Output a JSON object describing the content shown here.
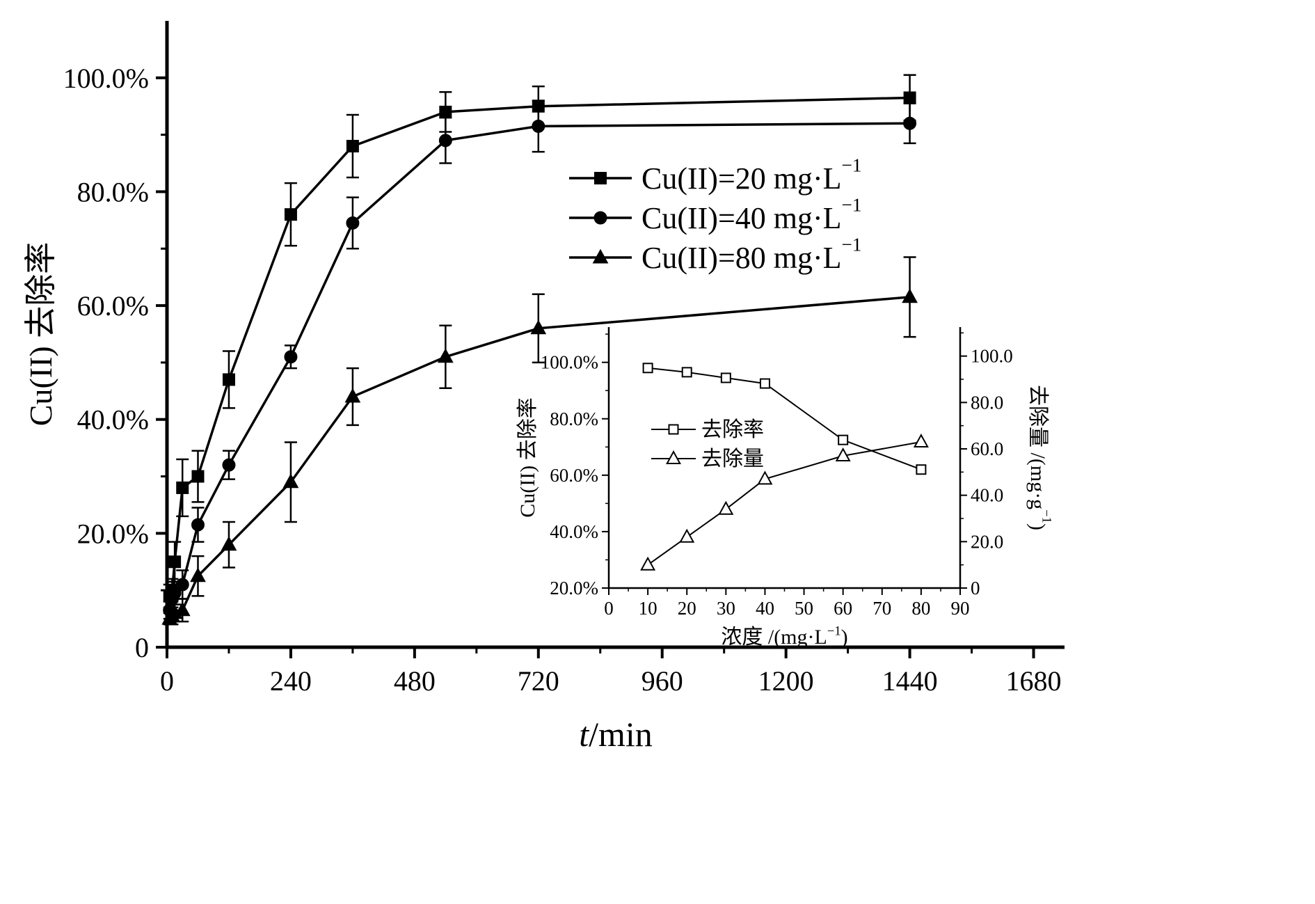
{
  "colors": {
    "ink": "#000000",
    "background": "#ffffff"
  },
  "chart_data": [
    {
      "id": "main",
      "type": "line",
      "title": "",
      "xlabel": "t/min",
      "xlabel_segments": [
        {
          "text": "t",
          "italic": true
        },
        {
          "text": "/min"
        }
      ],
      "ylabel": "Cu(II) 去除率",
      "ylabel_segments": [
        {
          "text": "Cu(II) 去除率"
        }
      ],
      "xlim": [
        0,
        1740
      ],
      "ylim": [
        0,
        110
      ],
      "y_unit": "percent",
      "grid": false,
      "legend_position": "upper-center-right",
      "x_ticks": {
        "values": [
          0,
          240,
          480,
          720,
          960,
          1200,
          1440,
          1680
        ],
        "labels": [
          "0",
          "240",
          "480",
          "720",
          "960",
          "1200",
          "1440",
          "1680"
        ],
        "minor_step": 120
      },
      "y_ticks": {
        "values": [
          0,
          20,
          40,
          60,
          80,
          100
        ],
        "labels": [
          "0",
          "20.0%",
          "40.0%",
          "60.0%",
          "80.0%",
          "100.0%"
        ],
        "minor_step": 10
      },
      "x": [
        5,
        10,
        15,
        30,
        60,
        120,
        240,
        360,
        540,
        720,
        1440
      ],
      "series": [
        {
          "name": "Cu(II)=20 mg·L⁻¹",
          "label_segments": [
            {
              "text": "Cu(II)=20 mg·L"
            },
            {
              "text": "−1",
              "sup": true
            }
          ],
          "marker": "square",
          "filled": true,
          "y": [
            9,
            10,
            15,
            28,
            30,
            47,
            76,
            88,
            94,
            95,
            96.5
          ],
          "err": [
            2,
            2,
            3.5,
            5,
            4.5,
            5,
            5.5,
            5.5,
            3.5,
            3.5,
            4
          ]
        },
        {
          "name": "Cu(II)=40 mg·L⁻¹",
          "label_segments": [
            {
              "text": "Cu(II)=40 mg·L"
            },
            {
              "text": "−1",
              "sup": true
            }
          ],
          "marker": "circle",
          "filled": true,
          "y": [
            6.5,
            8.5,
            9.5,
            11,
            21.5,
            32,
            51,
            74.5,
            89,
            91.5,
            92
          ],
          "err": [
            1.5,
            2,
            2,
            2.5,
            3,
            2.5,
            2,
            4.5,
            4,
            4.5,
            3.5
          ]
        },
        {
          "name": "Cu(II)=80 mg·L⁻¹",
          "label_segments": [
            {
              "text": "Cu(II)=80 mg·L"
            },
            {
              "text": "−1",
              "sup": true
            }
          ],
          "marker": "triangle",
          "filled": true,
          "y": [
            5,
            5.5,
            6,
            6.5,
            12.5,
            18,
            29,
            44,
            51,
            56,
            61.5
          ],
          "err": [
            1,
            1.5,
            1.5,
            2,
            3.5,
            4,
            7,
            5,
            5.5,
            6,
            7
          ]
        }
      ]
    },
    {
      "id": "inset",
      "type": "line",
      "xlabel": "浓度 /(mg·L⁻¹)",
      "xlabel_segments": [
        {
          "text": "浓度 /(mg·L"
        },
        {
          "text": "−1",
          "sup": true
        },
        {
          "text": ")"
        }
      ],
      "ylabel_left": "Cu(II) 去除率",
      "ylabel_left_segments": [
        {
          "text": "Cu(II) 去除率"
        }
      ],
      "ylabel_right": "去除量 /(mg·g⁻¹)",
      "ylabel_right_segments": [
        {
          "text": "去除量 /(mg·g"
        },
        {
          "text": "−1",
          "sup": true
        },
        {
          "text": ")"
        }
      ],
      "xlim": [
        0,
        90
      ],
      "ylim_left": [
        20,
        112.5
      ],
      "ylim_right": [
        0,
        112.5
      ],
      "grid": false,
      "legend_position": "center-left-inside",
      "x_ticks": {
        "values": [
          0,
          10,
          20,
          30,
          40,
          50,
          60,
          70,
          80,
          90
        ],
        "labels": [
          "0",
          "10",
          "20",
          "30",
          "40",
          "50",
          "60",
          "70",
          "80",
          "90"
        ],
        "minor_step": 5
      },
      "y_ticks_left": {
        "values": [
          20,
          40,
          60,
          80,
          100
        ],
        "labels": [
          "20.0%",
          "40.0%",
          "60.0%",
          "80.0%",
          "100.0%"
        ],
        "minor_step": 10
      },
      "y_ticks_right": {
        "values": [
          0,
          20,
          40,
          60,
          80,
          100
        ],
        "labels": [
          "0",
          "20.0",
          "40.0",
          "60.0",
          "80.0",
          "100.0"
        ],
        "minor_step": 10
      },
      "x": [
        10,
        20,
        30,
        40,
        60,
        80
      ],
      "series": [
        {
          "name": "去除率",
          "label_segments": [
            {
              "text": "去除率"
            }
          ],
          "axis": "left",
          "marker": "square",
          "filled": false,
          "y": [
            98,
            96.5,
            94.5,
            92.5,
            72.5,
            62
          ]
        },
        {
          "name": "去除量",
          "label_segments": [
            {
              "text": "去除量"
            }
          ],
          "axis": "right",
          "marker": "triangle",
          "filled": false,
          "y": [
            10,
            22,
            34,
            47,
            57,
            63
          ]
        }
      ]
    }
  ]
}
